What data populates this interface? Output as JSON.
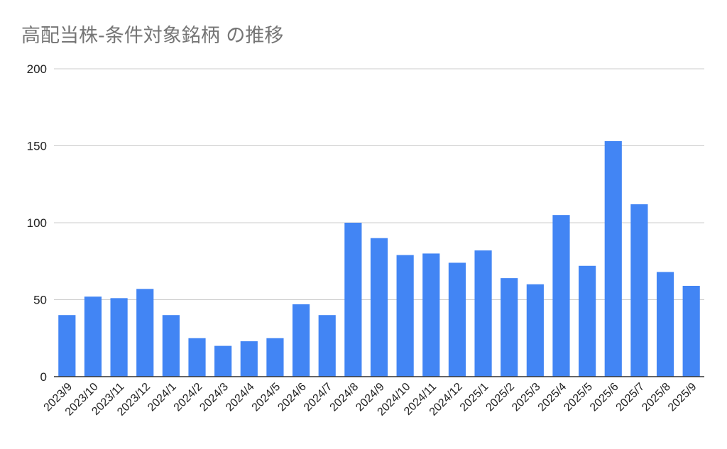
{
  "chart_data": {
    "type": "bar",
    "title": "高配当株-条件対象銘柄 の推移",
    "categories": [
      "2023/9",
      "2023/10",
      "2023/11",
      "2023/12",
      "2024/1",
      "2024/2",
      "2024/3",
      "2024/4",
      "2024/5",
      "2024/6",
      "2024/7",
      "2024/8",
      "2024/9",
      "2024/10",
      "2024/11",
      "2024/12",
      "2025/1",
      "2025/2",
      "2025/3",
      "2025/4",
      "2025/5",
      "2025/6",
      "2025/7",
      "2025/8",
      "2025/9"
    ],
    "series": [
      {
        "values": [
          40,
          52,
          51,
          57,
          40,
          25,
          20,
          23,
          25,
          47,
          40,
          100,
          90,
          79,
          80,
          74,
          82,
          64,
          60,
          105,
          72,
          153,
          112,
          68,
          59
        ],
        "color": "#4285f4"
      }
    ],
    "yticks": [
      "0",
      "50",
      "100",
      "150",
      "200"
    ],
    "ylim": [
      0,
      200
    ],
    "grid": true,
    "gridline_color": "#cccccc",
    "axis_color": "#333333"
  }
}
